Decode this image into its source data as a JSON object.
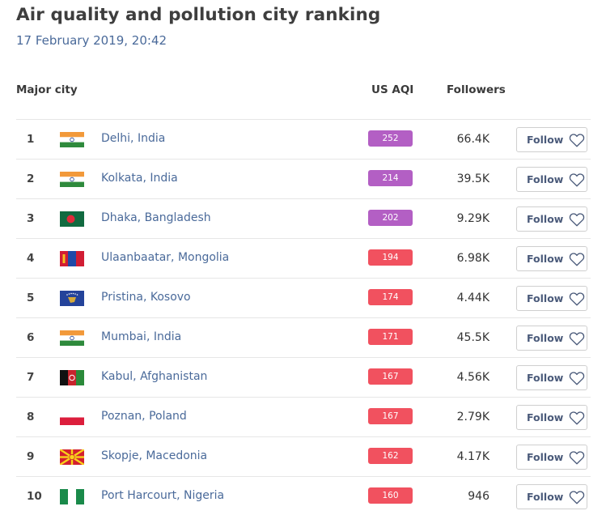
{
  "page": {
    "title": "Air quality and pollution city ranking",
    "timestamp": "17 February 2019, 20:42"
  },
  "table": {
    "headers": {
      "city": "Major city",
      "aqi": "US AQI",
      "followers": "Followers"
    },
    "follow_label": "Follow",
    "colors": {
      "very_unhealthy": "#b35fc4",
      "unhealthy": "#f1515f"
    },
    "rows": [
      {
        "rank": "1",
        "city": "Delhi, India",
        "flag": "india-flag",
        "aqi": "252",
        "level": "very_unhealthy",
        "followers": "66.4K"
      },
      {
        "rank": "2",
        "city": "Kolkata, India",
        "flag": "india-flag",
        "aqi": "214",
        "level": "very_unhealthy",
        "followers": "39.5K"
      },
      {
        "rank": "3",
        "city": "Dhaka, Bangladesh",
        "flag": "bangladesh-flag",
        "aqi": "202",
        "level": "very_unhealthy",
        "followers": "9.29K"
      },
      {
        "rank": "4",
        "city": "Ulaanbaatar, Mongolia",
        "flag": "mongolia-flag",
        "aqi": "194",
        "level": "unhealthy",
        "followers": "6.98K"
      },
      {
        "rank": "5",
        "city": "Pristina, Kosovo",
        "flag": "kosovo-flag",
        "aqi": "174",
        "level": "unhealthy",
        "followers": "4.44K"
      },
      {
        "rank": "6",
        "city": "Mumbai, India",
        "flag": "india-flag",
        "aqi": "171",
        "level": "unhealthy",
        "followers": "45.5K"
      },
      {
        "rank": "7",
        "city": "Kabul, Afghanistan",
        "flag": "afghanistan-flag",
        "aqi": "167",
        "level": "unhealthy",
        "followers": "4.56K"
      },
      {
        "rank": "8",
        "city": "Poznan, Poland",
        "flag": "poland-flag",
        "aqi": "167",
        "level": "unhealthy",
        "followers": "2.79K"
      },
      {
        "rank": "9",
        "city": "Skopje, Macedonia",
        "flag": "macedonia-flag",
        "aqi": "162",
        "level": "unhealthy",
        "followers": "4.17K"
      },
      {
        "rank": "10",
        "city": "Port Harcourt, Nigeria",
        "flag": "nigeria-flag",
        "aqi": "160",
        "level": "unhealthy",
        "followers": "946"
      }
    ]
  }
}
